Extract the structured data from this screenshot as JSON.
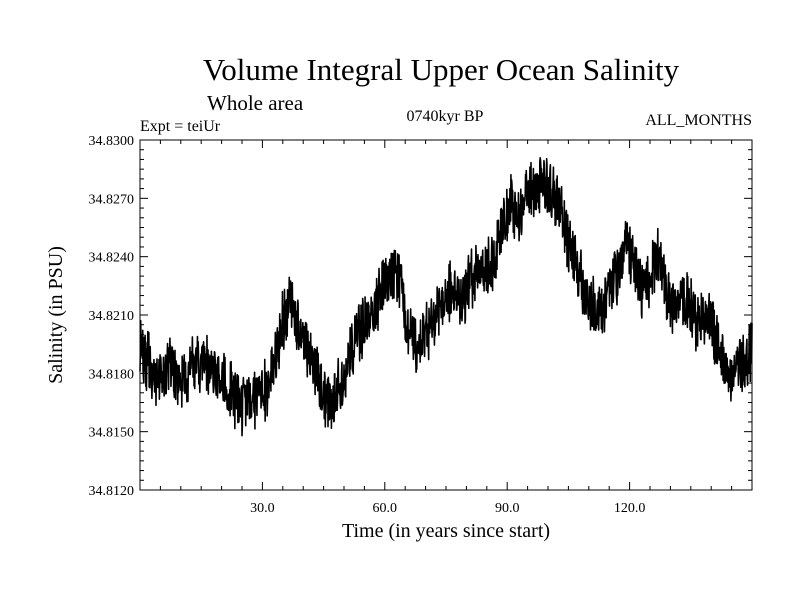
{
  "chart_data": {
    "type": "line",
    "title": "Volume Integral Upper Ocean Salinity",
    "subtitle": "Whole area",
    "experiment": "Expt = teiUr",
    "period": "0740kyr BP",
    "months": "ALL_MONTHS",
    "xlabel": "Time (in years since start)",
    "ylabel": "Salinity (in PSU)",
    "xlim": [
      0,
      150
    ],
    "ylim": [
      34.812,
      34.83
    ],
    "x_ticks": [
      30,
      60,
      90,
      120
    ],
    "x_tick_labels": [
      "30.0",
      "60.0",
      "90.0",
      "120.0"
    ],
    "y_ticks": [
      34.812,
      34.815,
      34.818,
      34.821,
      34.824,
      34.827,
      34.83
    ],
    "y_tick_labels": [
      "34.8120",
      "34.8150",
      "34.8180",
      "34.8210",
      "34.8240",
      "34.8270",
      "34.8300"
    ],
    "series": [
      {
        "name": "salinity",
        "color": "#000000",
        "x": [
          0,
          2,
          4,
          7,
          10,
          13,
          16,
          19,
          22,
          25,
          28,
          31,
          33,
          35,
          37,
          39,
          41,
          43,
          44,
          46,
          48,
          50,
          52,
          54,
          56,
          58,
          60,
          62,
          64,
          65,
          67,
          69,
          71,
          73,
          75,
          77,
          79,
          81,
          83,
          85,
          87,
          89,
          91,
          93,
          95,
          97,
          99,
          101,
          103,
          105,
          107,
          109,
          111,
          113,
          115,
          117,
          119,
          121,
          123,
          125,
          127,
          129,
          131,
          133,
          135,
          137,
          139,
          141,
          143,
          145,
          147,
          149,
          150
        ],
        "y": [
          34.8191,
          34.8186,
          34.8177,
          34.8183,
          34.8176,
          34.8182,
          34.8186,
          34.8181,
          34.8172,
          34.8164,
          34.8168,
          34.8171,
          34.8186,
          34.8207,
          34.8217,
          34.8202,
          34.8192,
          34.8182,
          34.8173,
          34.8164,
          34.8168,
          34.8178,
          34.8191,
          34.8201,
          34.8207,
          34.8216,
          34.8223,
          34.8229,
          34.8228,
          34.8209,
          34.8196,
          34.8196,
          34.8204,
          34.8212,
          34.8219,
          34.8222,
          34.8219,
          34.8227,
          34.8231,
          34.8233,
          34.8241,
          34.8258,
          34.8268,
          34.8261,
          34.8276,
          34.8273,
          34.8278,
          34.8273,
          34.8263,
          34.8247,
          34.8235,
          34.8221,
          34.8213,
          34.8213,
          34.8223,
          34.8231,
          34.8246,
          34.8239,
          34.8221,
          34.8229,
          34.8241,
          34.8221,
          34.8214,
          34.8218,
          34.8214,
          34.8205,
          34.8212,
          34.8198,
          34.8186,
          34.8174,
          34.8183,
          34.8188,
          34.8193
        ]
      }
    ]
  }
}
